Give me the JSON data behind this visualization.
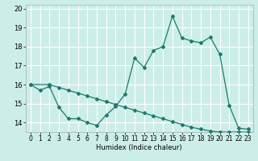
{
  "xlabel": "Humidex (Indice chaleur)",
  "background_color": "#cceee8",
  "grid_color": "#ffffff",
  "line_color": "#1a7a6e",
  "xlim": [
    -0.5,
    23.5
  ],
  "ylim": [
    13.5,
    20.2
  ],
  "x_ticks": [
    0,
    1,
    2,
    3,
    4,
    5,
    6,
    7,
    8,
    9,
    10,
    11,
    12,
    13,
    14,
    15,
    16,
    17,
    18,
    19,
    20,
    21,
    22,
    23
  ],
  "y_ticks": [
    14,
    15,
    16,
    17,
    18,
    19,
    20
  ],
  "line1_x": [
    0,
    1,
    2,
    3,
    4,
    5,
    6,
    7,
    8,
    9,
    10,
    11,
    12,
    13,
    14,
    15,
    16,
    17,
    18,
    19,
    20,
    21,
    22,
    23
  ],
  "line1_y": [
    16.0,
    15.7,
    15.9,
    14.8,
    14.2,
    14.2,
    14.0,
    13.85,
    14.4,
    14.85,
    15.5,
    17.4,
    16.9,
    17.8,
    18.0,
    19.6,
    18.45,
    18.3,
    18.2,
    18.5,
    17.6,
    14.9,
    13.7,
    13.65
  ],
  "line2_x": [
    0,
    2,
    3,
    4,
    5,
    6,
    7,
    8,
    9,
    10,
    11,
    12,
    13,
    14,
    15,
    16,
    17,
    18,
    19,
    20,
    21,
    22,
    23
  ],
  "line2_y": [
    16.0,
    16.0,
    15.85,
    15.7,
    15.55,
    15.4,
    15.25,
    15.1,
    14.95,
    14.8,
    14.65,
    14.5,
    14.35,
    14.2,
    14.05,
    13.9,
    13.75,
    13.65,
    13.55,
    13.5,
    13.5,
    13.5,
    13.5
  ]
}
